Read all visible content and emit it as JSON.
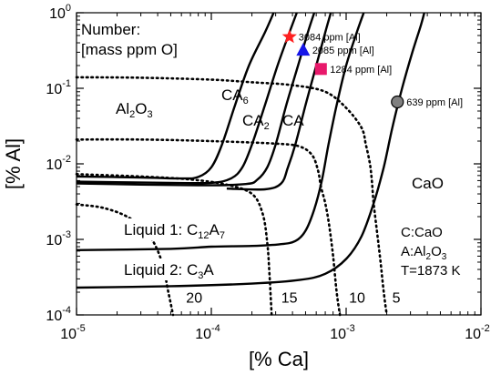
{
  "chart_data": {
    "type": "line",
    "xlabel": "[% Ca]",
    "ylabel": "[% Al]",
    "x_scale": "log",
    "y_scale": "log",
    "xlim": [
      1e-05,
      0.01
    ],
    "ylim": [
      0.0001,
      1
    ],
    "x_ticks": [
      {
        "value": 1e-05,
        "base": "10",
        "exp": "-5"
      },
      {
        "value": 0.0001,
        "base": "10",
        "exp": "-4"
      },
      {
        "value": 0.001,
        "base": "10",
        "exp": "-3"
      },
      {
        "value": 0.01,
        "base": "10",
        "exp": "-2"
      }
    ],
    "y_ticks": [
      {
        "value": 0.0001,
        "base": "10",
        "exp": "-4"
      },
      {
        "value": 0.001,
        "base": "10",
        "exp": "-3"
      },
      {
        "value": 0.01,
        "base": "10",
        "exp": "-2"
      },
      {
        "value": 0.1,
        "base": "10",
        "exp": "-1"
      },
      {
        "value": 1,
        "base": "10",
        "exp": "0"
      }
    ],
    "grid": false,
    "legend_title_lines": [
      "Number:",
      "[mass ppm O]"
    ],
    "iso_oxygen_curves": [
      {
        "label": "20",
        "points": [
          [
            1e-05,
            0.0029
          ],
          [
            1.6e-05,
            0.0026
          ],
          [
            2.5e-05,
            0.0019
          ],
          [
            3.5e-05,
            0.0011
          ],
          [
            4.3e-05,
            0.0005
          ],
          [
            4.8e-05,
            0.0002
          ],
          [
            5.2e-05,
            0.0001
          ]
        ]
      },
      {
        "label": "15",
        "points": [
          [
            1e-05,
            0.0073
          ],
          [
            3e-05,
            0.0068
          ],
          [
            7e-05,
            0.0062
          ],
          [
            0.00013,
            0.0053
          ],
          [
            0.0002,
            0.004
          ],
          [
            0.00024,
            0.0022
          ],
          [
            0.00026,
            0.0009
          ],
          [
            0.00027,
            0.00035
          ],
          [
            0.00028,
            0.0001
          ]
        ]
      },
      {
        "label": "10",
        "points": [
          [
            1e-05,
            0.021
          ],
          [
            3e-05,
            0.021
          ],
          [
            0.0001,
            0.02
          ],
          [
            0.0003,
            0.0185
          ],
          [
            0.00045,
            0.017
          ],
          [
            0.00056,
            0.013
          ],
          [
            0.00062,
            0.008
          ],
          [
            0.00065,
            0.005
          ],
          [
            0.0007,
            0.003
          ],
          [
            0.00075,
            0.0015
          ],
          [
            0.0008,
            0.0006
          ],
          [
            0.00085,
            0.0002
          ],
          [
            0.0009,
            0.0001
          ]
        ]
      },
      {
        "label": "5",
        "points": [
          [
            1e-05,
            0.14
          ],
          [
            3e-05,
            0.138
          ],
          [
            0.0001,
            0.13
          ],
          [
            0.0002,
            0.12
          ],
          [
            0.0004,
            0.11
          ],
          [
            0.0007,
            0.09
          ],
          [
            0.001,
            0.055
          ],
          [
            0.0013,
            0.03
          ],
          [
            0.0014,
            0.018
          ],
          [
            0.0015,
            0.01
          ],
          [
            0.00155,
            0.006
          ],
          [
            0.0016,
            0.003
          ],
          [
            0.0017,
            0.0012
          ],
          [
            0.0018,
            0.0005
          ],
          [
            0.0019,
            0.0002
          ],
          [
            0.002,
            0.0001
          ]
        ]
      }
    ],
    "phase_boundaries": [
      {
        "points": [
          [
            1e-05,
            0.0068
          ],
          [
            3e-05,
            0.0066
          ],
          [
            6e-05,
            0.0064
          ],
          [
            8e-05,
            0.0067
          ],
          [
            0.0001,
            0.009
          ],
          [
            0.00012,
            0.018
          ],
          [
            0.00015,
            0.06
          ],
          [
            0.00019,
            0.2
          ],
          [
            0.00025,
            0.55
          ],
          [
            0.00029,
            1
          ]
        ]
      },
      {
        "points": [
          [
            1e-05,
            0.0058
          ],
          [
            5e-05,
            0.0056
          ],
          [
            0.0001,
            0.0056
          ],
          [
            0.00014,
            0.0064
          ],
          [
            0.00017,
            0.009
          ],
          [
            0.0002,
            0.018
          ],
          [
            0.00025,
            0.06
          ],
          [
            0.00031,
            0.2
          ],
          [
            0.00038,
            0.55
          ],
          [
            0.00043,
            1
          ]
        ]
      },
      {
        "points": [
          [
            1e-05,
            0.0055
          ],
          [
            8e-05,
            0.0052
          ],
          [
            0.00018,
            0.0054
          ],
          [
            0.00022,
            0.0062
          ],
          [
            0.00026,
            0.009
          ],
          [
            0.0003,
            0.018
          ],
          [
            0.00036,
            0.06
          ],
          [
            0.00044,
            0.2
          ],
          [
            0.00052,
            0.55
          ],
          [
            0.00058,
            1
          ]
        ]
      },
      {
        "points": [
          [
            0.00013,
            0.0047
          ],
          [
            0.00025,
            0.0046
          ],
          [
            0.00033,
            0.0055
          ],
          [
            0.00037,
            0.009
          ],
          [
            0.00042,
            0.018
          ],
          [
            0.0005,
            0.06
          ],
          [
            0.0006,
            0.2
          ],
          [
            0.0007,
            0.55
          ],
          [
            0.00077,
            1
          ]
        ]
      },
      {
        "points": [
          [
            1e-05,
            0.00072
          ],
          [
            5e-05,
            0.00075
          ],
          [
            0.0001,
            0.0008
          ],
          [
            0.0002,
            0.00082
          ],
          [
            0.00032,
            0.00086
          ],
          [
            0.00042,
            0.00095
          ],
          [
            0.0005,
            0.0013
          ],
          [
            0.00058,
            0.0025
          ],
          [
            0.00066,
            0.006
          ],
          [
            0.00074,
            0.018
          ],
          [
            0.00085,
            0.06
          ],
          [
            0.001,
            0.2
          ],
          [
            0.0012,
            0.55
          ],
          [
            0.00135,
            1
          ]
        ]
      },
      {
        "points": [
          [
            1e-05,
            0.00023
          ],
          [
            5e-05,
            0.00024
          ],
          [
            0.0002,
            0.00026
          ],
          [
            0.00045,
            0.00029
          ],
          [
            0.0007,
            0.00035
          ],
          [
            0.001,
            0.00055
          ],
          [
            0.0013,
            0.0011
          ],
          [
            0.0016,
            0.003
          ],
          [
            0.0019,
            0.009
          ],
          [
            0.0022,
            0.03
          ],
          [
            0.0026,
            0.1
          ],
          [
            0.0031,
            0.3
          ],
          [
            0.0036,
            0.7
          ],
          [
            0.0038,
            1
          ]
        ]
      }
    ],
    "markers": [
      {
        "label": "3084 ppm [Al]",
        "x": 0.00038,
        "y": 0.48,
        "shape": "star",
        "color": "#ff2020"
      },
      {
        "label": "2085 ppm [Al]",
        "x": 0.00048,
        "y": 0.32,
        "shape": "triangle",
        "color": "#1616e8"
      },
      {
        "label": "1284 ppm [Al]",
        "x": 0.00065,
        "y": 0.18,
        "shape": "square",
        "color": "#e8196b"
      },
      {
        "label": "639 ppm [Al]",
        "x": 0.0024,
        "y": 0.066,
        "shape": "circle",
        "color": "#808080"
      }
    ],
    "contour_labels": [
      {
        "text": "20",
        "x": 6.5e-05,
        "y": 0.000145
      },
      {
        "text": "15",
        "x": 0.00033,
        "y": 0.000145
      },
      {
        "text": "10",
        "x": 0.00105,
        "y": 0.000145
      },
      {
        "text": "5",
        "x": 0.0022,
        "y": 0.000145
      }
    ]
  },
  "annotations": {
    "al2o3_main": "Al",
    "al2o3_sub1": "2",
    "al2o3_mid": "O",
    "al2o3_sub2": "3",
    "ca6_main": "CA",
    "ca6_sub": "6",
    "ca2_main": "CA",
    "ca2_sub": "2",
    "ca": "CA",
    "cao": "CaO",
    "liquid1_prefix": "Liquid 1:  C",
    "liquid1_sub1": "12",
    "liquid1_mid": "A",
    "liquid1_sub2": "7",
    "liquid2_prefix": "Liquid 2:  C",
    "liquid2_sub": "3",
    "liquid2_suffix": "A",
    "key_c": "C:CaO",
    "key_a_main": "A:Al",
    "key_a_sub1": "2",
    "key_a_mid": "O",
    "key_a_sub2": "3",
    "temperature": "T=1873 K"
  },
  "colors": {
    "line": "#000000",
    "background": "#ffffff"
  }
}
